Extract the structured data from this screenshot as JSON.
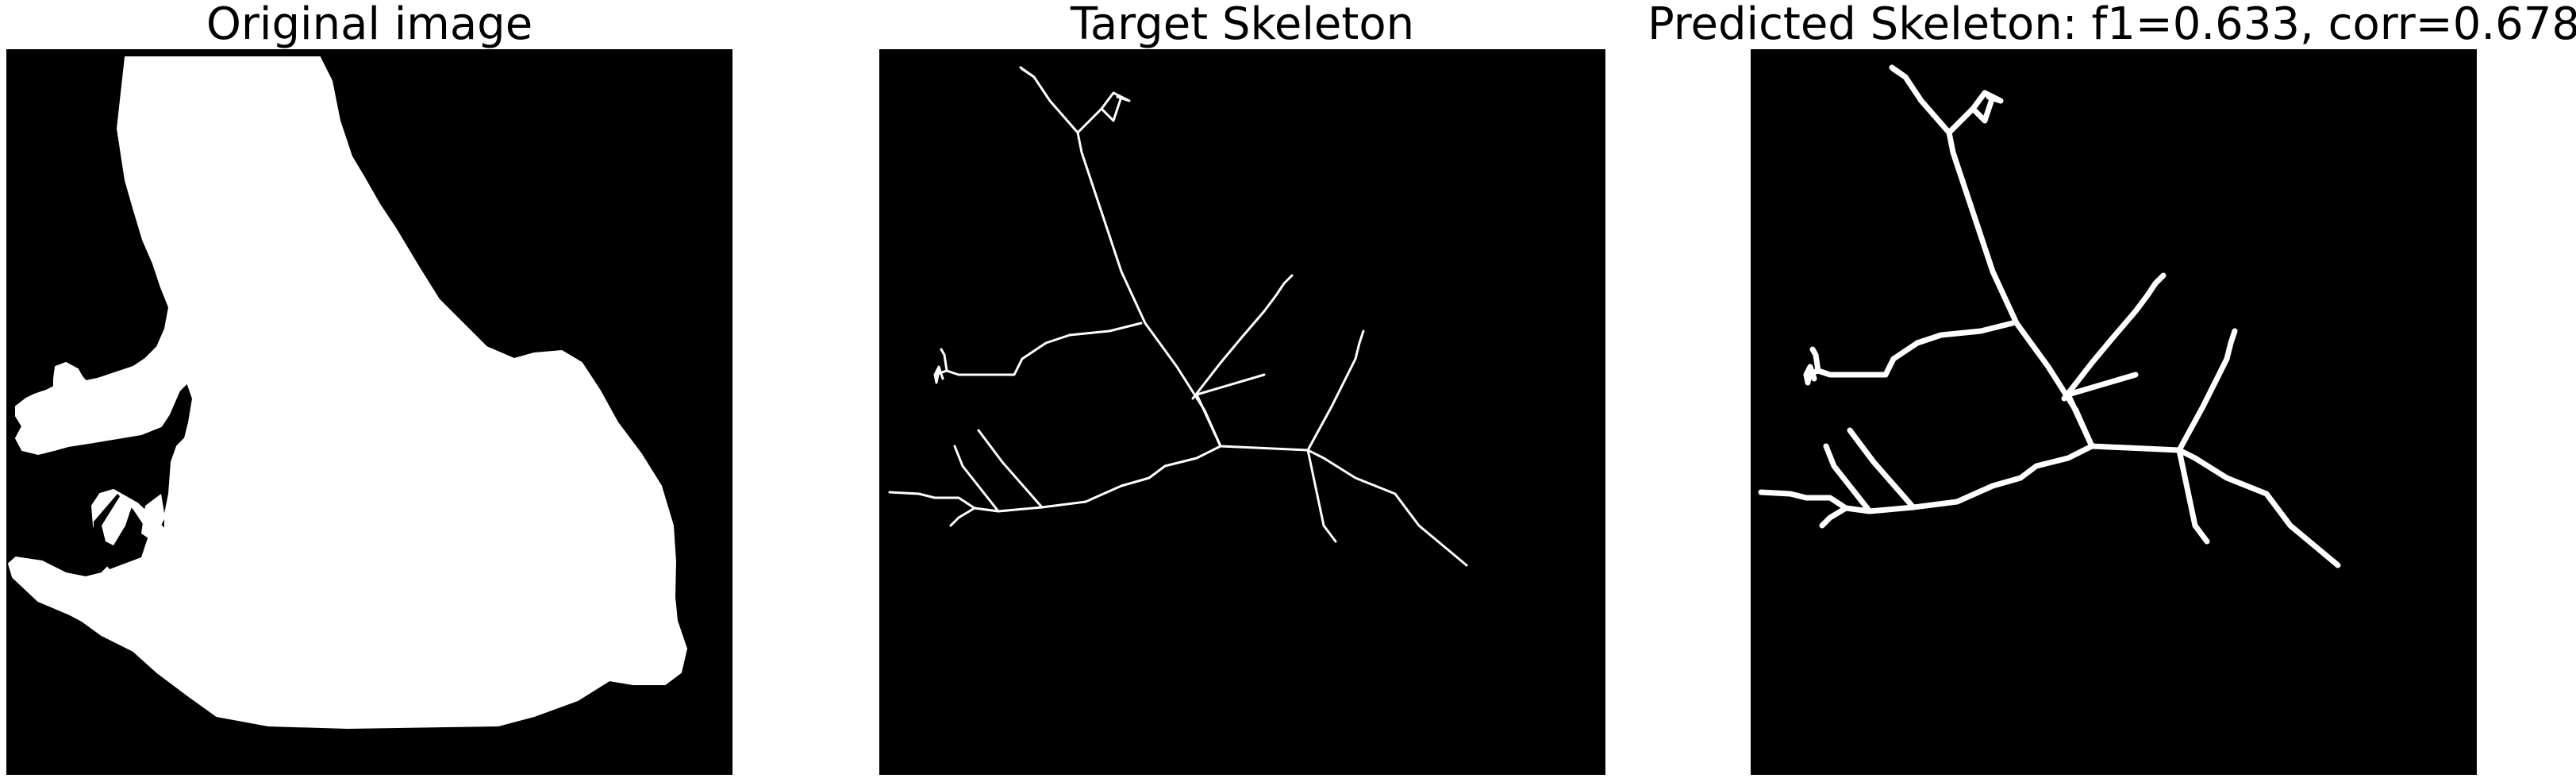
{
  "panels": [
    {
      "title": "Original image",
      "image": "frog silhouette (white on black)"
    },
    {
      "title": "Target Skeleton",
      "image": "thin white skeleton lines on black"
    },
    {
      "title": "Predicted Skeleton: f1=0.633, corr=0.678",
      "image": "thicker white skeleton lines on black"
    }
  ],
  "colors": {
    "background": "#000000",
    "foreground": "#ffffff",
    "page": "#ffffff"
  }
}
